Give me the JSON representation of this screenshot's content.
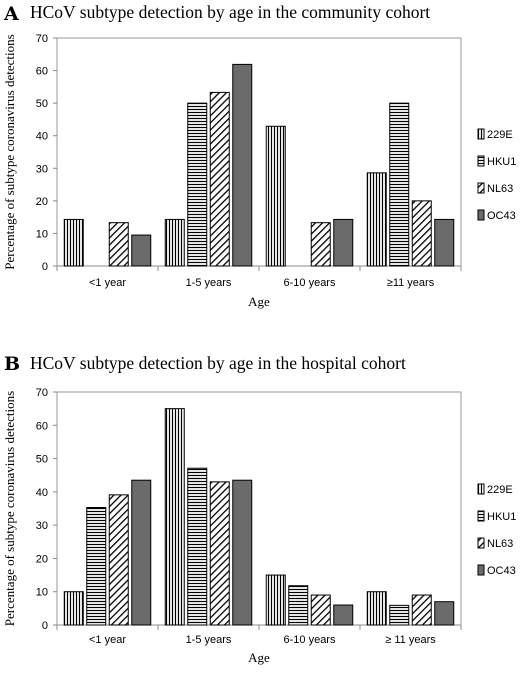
{
  "patterns": {
    "229E": "vertical-stripes",
    "HKU1": "horizontal-stripes",
    "NL63": "diagonal-stripes",
    "OC43": "solid-gray"
  },
  "colors": {
    "bar_stroke": "#000000",
    "solid_fill": "#6b6b6b",
    "axis": "#8c8c8c",
    "plot_border": "#9a9a9a"
  },
  "chart_data": [
    {
      "panel": "A",
      "type": "bar",
      "title": "HCoV subtype detection by age in the community cohort",
      "xlabel": "Age",
      "ylabel": "Percentage of subtype coronavirus detections",
      "ylim": [
        0,
        70
      ],
      "yticks": [
        0,
        10,
        20,
        30,
        40,
        50,
        60,
        70
      ],
      "grid": false,
      "legend_position": "right",
      "categories": [
        "<1 year",
        "1-5 years",
        "6-10 years",
        "≥11 years"
      ],
      "series": [
        {
          "name": "229E",
          "values": [
            14.3,
            14.3,
            42.9,
            28.6
          ]
        },
        {
          "name": "HKU1",
          "values": [
            0,
            50,
            0,
            50
          ]
        },
        {
          "name": "NL63",
          "values": [
            13.3,
            53.3,
            13.3,
            20
          ]
        },
        {
          "name": "OC43",
          "values": [
            9.5,
            61.9,
            14.3,
            14.3
          ]
        }
      ]
    },
    {
      "panel": "B",
      "type": "bar",
      "title": "HCoV subtype detection by age in the hospital cohort",
      "xlabel": "Age",
      "ylabel": "Percentage of subtype coronavirus detections",
      "ylim": [
        0,
        70
      ],
      "yticks": [
        0,
        10,
        20,
        30,
        40,
        50,
        60,
        70
      ],
      "grid": false,
      "legend_position": "right",
      "categories": [
        "<1 year",
        "1-5 years",
        "6-10 years",
        "≥ 11 years"
      ],
      "series": [
        {
          "name": "229E",
          "values": [
            10,
            65,
            15,
            10
          ]
        },
        {
          "name": "HKU1",
          "values": [
            35.3,
            47.1,
            11.8,
            5.9
          ]
        },
        {
          "name": "NL63",
          "values": [
            39.1,
            43,
            9,
            9
          ]
        },
        {
          "name": "OC43",
          "values": [
            43.5,
            43.5,
            6,
            7
          ]
        }
      ]
    }
  ]
}
